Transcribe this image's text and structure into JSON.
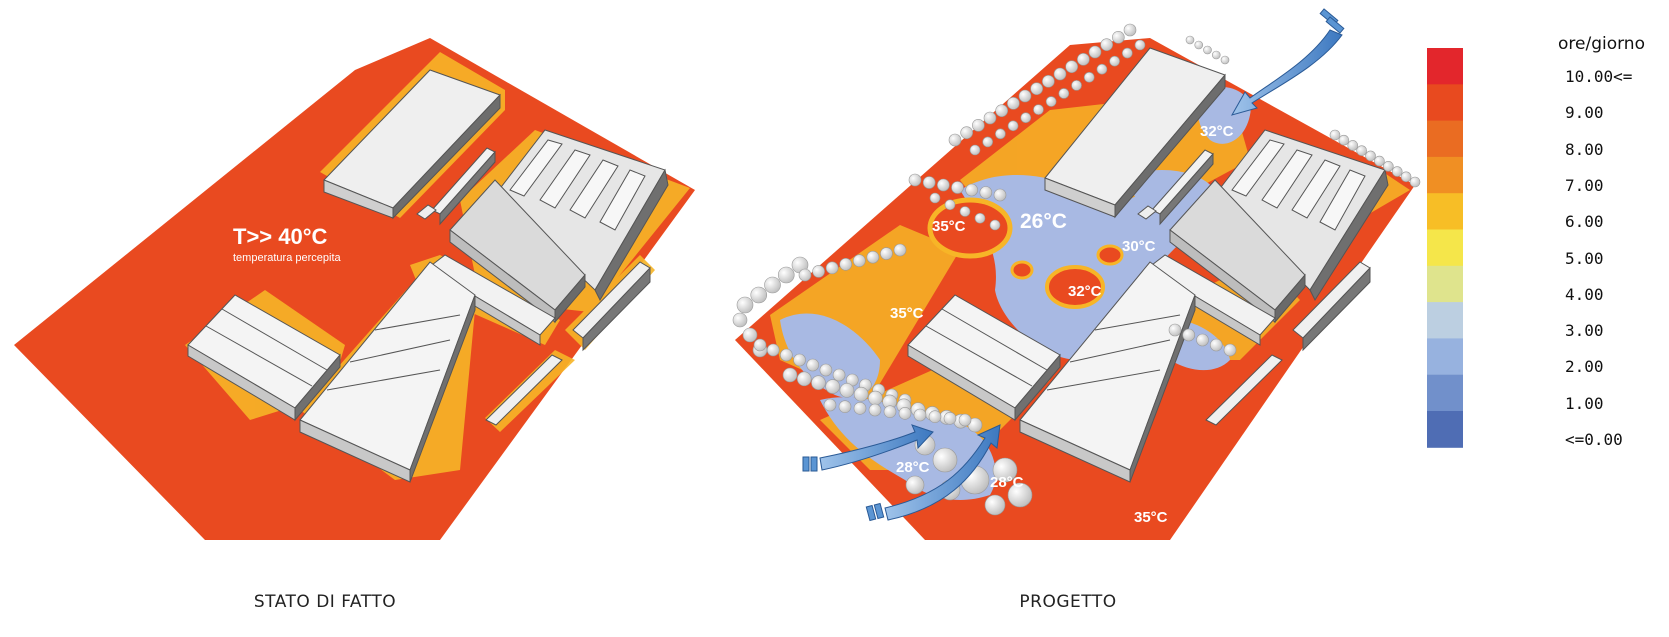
{
  "panels": [
    {
      "caption": "STATO DI FATTO"
    },
    {
      "caption": "PROGETTO"
    }
  ],
  "left_annotation": {
    "main": "T>> 40°C",
    "sub": "temperatura percepita"
  },
  "right_temperatures": [
    "32°C",
    "26°C",
    "35°C",
    "30°C",
    "32°C",
    "35°C",
    "28°C",
    "28°C",
    "35°C"
  ],
  "legend": {
    "title": "ore/giorno",
    "ticks": [
      "10.00<=",
      "9.00",
      "8.00",
      "7.00",
      "6.00",
      "5.00",
      "4.00",
      "3.00",
      "2.00",
      "1.00",
      "<=0.00"
    ],
    "colors": [
      "#e3262c",
      "#e84a1f",
      "#ea6c22",
      "#f08f23",
      "#f7be26",
      "#f5e64a",
      "#dfe48d",
      "#bccfe1",
      "#97b2df",
      "#7190cb",
      "#4f6db4"
    ]
  },
  "colors": {
    "hot": "#e94a20",
    "warm_edge": "#f7b527",
    "cool": "#a8b9e3",
    "building_top": "#efefef",
    "building_side": "#9a9a9a",
    "arrow": "#5b95d3"
  }
}
